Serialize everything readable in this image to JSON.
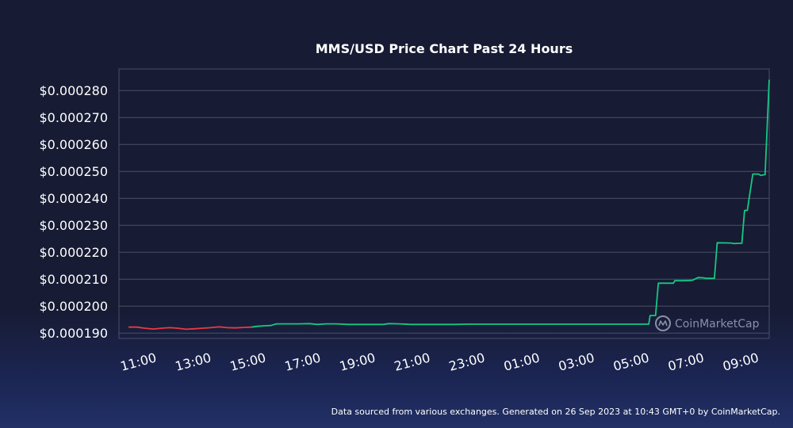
{
  "footer_text": "Data sourced from various exchanges. Generated on 26 Sep 2023 at 10:43 GMT+0 by CoinMarketCap.",
  "watermark": {
    "text": "CoinMarketCap",
    "icon": "coinmarketcap-logo-icon"
  },
  "colors": {
    "background": "#171b33",
    "grid": "#4a4f66",
    "up_line": "#16c784",
    "down_line": "#ea3943",
    "text": "#ffffff"
  },
  "chart_data": {
    "type": "line",
    "title": "MMS/USD Price Chart Past 24 Hours",
    "xlabel": "",
    "ylabel": "",
    "ylim": [
      0.000188,
      0.000288
    ],
    "y_ticks": [
      0.00019,
      0.0002,
      0.00021,
      0.00022,
      0.00023,
      0.00024,
      0.00025,
      0.00026,
      0.00027,
      0.00028
    ],
    "y_tick_labels": [
      "$0.000190",
      "$0.000200",
      "$0.000210",
      "$0.000220",
      "$0.000230",
      "$0.000240",
      "$0.000250",
      "$0.000260",
      "$0.000270",
      "$0.000280"
    ],
    "x_range_hours": [
      10.25,
      34.0
    ],
    "x_ticks": [
      11,
      13,
      15,
      17,
      19,
      21,
      23,
      25,
      27,
      29,
      31,
      33
    ],
    "x_tick_labels": [
      "11:00",
      "13:00",
      "15:00",
      "17:00",
      "19:00",
      "21:00",
      "23:00",
      "01:00",
      "03:00",
      "05:00",
      "07:00",
      "09:00"
    ],
    "grid": true,
    "series": [
      {
        "segment": "down",
        "points": [
          [
            10.6,
            0.0001922
          ],
          [
            10.9,
            0.0001922
          ],
          [
            11.2,
            0.0001918
          ],
          [
            11.5,
            0.0001915
          ],
          [
            11.8,
            0.0001918
          ],
          [
            12.1,
            0.000192
          ],
          [
            12.4,
            0.0001918
          ],
          [
            12.7,
            0.0001914
          ],
          [
            13.0,
            0.0001916
          ],
          [
            13.3,
            0.0001918
          ],
          [
            13.6,
            0.000192
          ],
          [
            13.9,
            0.0001923
          ],
          [
            14.2,
            0.000192
          ],
          [
            14.5,
            0.0001919
          ],
          [
            14.8,
            0.0001921
          ],
          [
            15.1,
            0.0001922
          ]
        ]
      },
      {
        "segment": "up",
        "points": [
          [
            15.1,
            0.0001922
          ],
          [
            15.3,
            0.0001925
          ],
          [
            15.6,
            0.0001927
          ],
          [
            15.8,
            0.0001928
          ],
          [
            16.0,
            0.0001934
          ],
          [
            16.4,
            0.0001934
          ],
          [
            16.8,
            0.0001934
          ],
          [
            17.2,
            0.0001935
          ],
          [
            17.5,
            0.0001932
          ],
          [
            17.8,
            0.0001934
          ],
          [
            18.2,
            0.0001934
          ],
          [
            18.6,
            0.0001932
          ],
          [
            19.0,
            0.0001932
          ],
          [
            19.5,
            0.0001932
          ],
          [
            19.9,
            0.0001932
          ],
          [
            20.1,
            0.0001935
          ],
          [
            20.5,
            0.0001934
          ],
          [
            20.9,
            0.0001932
          ],
          [
            21.5,
            0.0001932
          ],
          [
            22.0,
            0.0001932
          ],
          [
            22.5,
            0.0001932
          ],
          [
            23.0,
            0.0001933
          ],
          [
            23.5,
            0.0001933
          ],
          [
            24.0,
            0.0001933
          ],
          [
            25.0,
            0.0001933
          ],
          [
            26.0,
            0.0001933
          ],
          [
            27.0,
            0.0001933
          ],
          [
            28.0,
            0.0001933
          ],
          [
            29.0,
            0.0001933
          ],
          [
            29.6,
            0.0001933
          ],
          [
            29.65,
            0.0001965
          ],
          [
            29.85,
            0.0001965
          ],
          [
            29.95,
            0.0002085
          ],
          [
            30.2,
            0.0002085
          ],
          [
            30.5,
            0.0002085
          ],
          [
            30.55,
            0.0002094
          ],
          [
            30.9,
            0.0002094
          ],
          [
            31.2,
            0.0002096
          ],
          [
            31.4,
            0.0002106
          ],
          [
            31.6,
            0.0002105
          ],
          [
            31.7,
            0.0002103
          ],
          [
            32.0,
            0.0002103
          ],
          [
            32.1,
            0.0002235
          ],
          [
            32.6,
            0.0002234
          ],
          [
            32.7,
            0.0002232
          ],
          [
            32.9,
            0.0002233
          ],
          [
            33.0,
            0.0002233
          ],
          [
            33.1,
            0.0002355
          ],
          [
            33.2,
            0.0002355
          ],
          [
            33.4,
            0.000249
          ],
          [
            33.6,
            0.000249
          ],
          [
            33.7,
            0.0002485
          ],
          [
            33.85,
            0.0002488
          ],
          [
            34.0,
            0.000284
          ]
        ]
      }
    ]
  }
}
